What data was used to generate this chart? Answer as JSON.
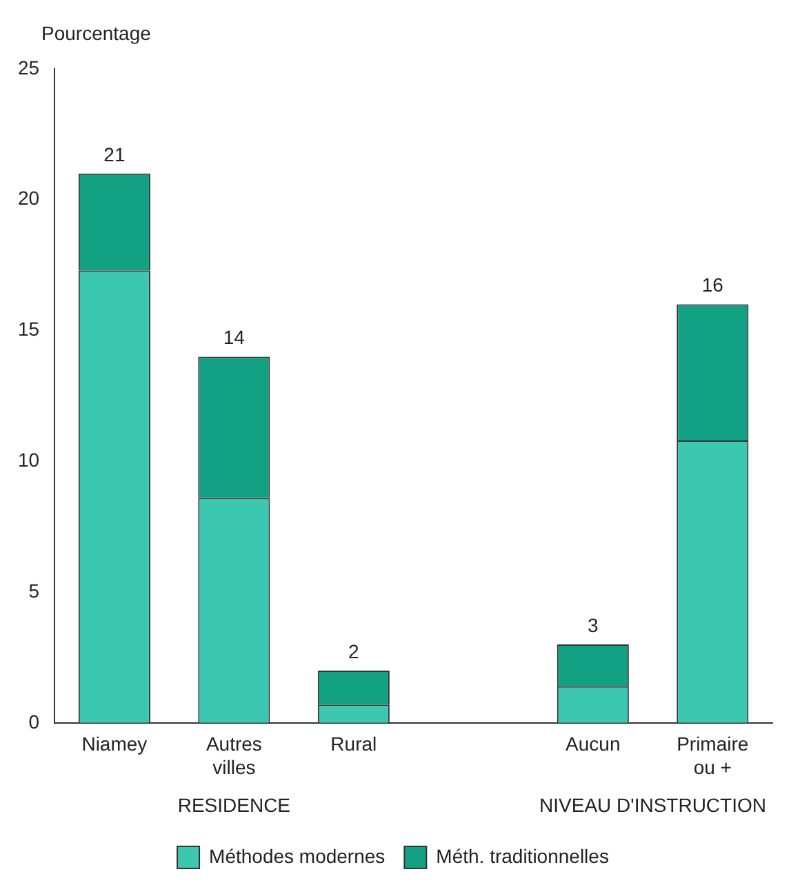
{
  "chart_data": {
    "type": "bar",
    "ylabel": "Pourcentage",
    "stacked": true,
    "categories": [
      "Niamey",
      "Autres villes",
      "Rural",
      null,
      "Aucun",
      "Primaire ou +"
    ],
    "series": [
      {
        "name": "Méthodes modernes",
        "color": "#3cc8b0",
        "values": [
          17.3,
          8.6,
          0.7,
          null,
          1.4,
          10.8
        ]
      },
      {
        "name": "Méth. traditionnelles",
        "color": "#12a183",
        "values": [
          3.7,
          5.4,
          1.3,
          null,
          1.6,
          5.2
        ]
      }
    ],
    "totals": [
      "21",
      "14",
      "2",
      null,
      "3",
      "16"
    ],
    "ylim": [
      0,
      25
    ],
    "yticks": [
      0,
      5,
      10,
      15,
      20,
      25
    ],
    "grid": false,
    "legend": "bottom",
    "annotations": [
      "RESIDENCE",
      "NIVEAU D'INSTRUCTION"
    ]
  }
}
